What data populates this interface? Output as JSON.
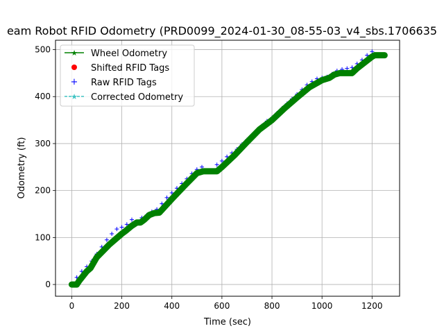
{
  "chart_data": {
    "type": "line",
    "title": "eam Robot RFID Odometry (PRD0099_2024-01-30_08-55-03_v4_sbs.1706635",
    "xlabel": "Time (sec)",
    "ylabel": "Odometry (ft)",
    "xlim": [
      -65,
      1310
    ],
    "ylim": [
      -25,
      520
    ],
    "xticks": [
      0,
      200,
      400,
      600,
      800,
      1000,
      1200
    ],
    "yticks": [
      0,
      100,
      200,
      300,
      400,
      500
    ],
    "grid": true,
    "legend_position": "top-left",
    "series": [
      {
        "name": "Wheel Odometry",
        "color": "#008000",
        "style": "line-star",
        "x": [
          0,
          20,
          30,
          60,
          75,
          100,
          150,
          200,
          215,
          240,
          260,
          275,
          290,
          310,
          330,
          350,
          400,
          450,
          500,
          525,
          560,
          580,
          600,
          650,
          700,
          750,
          800,
          850,
          900,
          950,
          1000,
          1030,
          1050,
          1070,
          1080,
          1120,
          1140,
          1200,
          1210,
          1250
        ],
        "y": [
          0,
          0,
          8,
          28,
          35,
          58,
          85,
          108,
          114,
          125,
          132,
          132,
          138,
          148,
          152,
          153,
          182,
          210,
          237,
          241,
          241,
          241,
          250,
          275,
          303,
          330,
          350,
          375,
          398,
          420,
          435,
          440,
          447,
          450,
          450,
          450,
          460,
          485,
          488,
          488
        ]
      },
      {
        "name": "Shifted RFID Tags",
        "color": "#ff0000",
        "style": "dot",
        "x": [],
        "y": []
      },
      {
        "name": "Raw RFID Tags",
        "color": "#0000ff",
        "style": "plus",
        "x": [
          20,
          40,
          60,
          80,
          100,
          120,
          140,
          160,
          180,
          200,
          220,
          240,
          280,
          300,
          320,
          340,
          360,
          380,
          400,
          420,
          440,
          460,
          480,
          500,
          520,
          580,
          600,
          620,
          640,
          660,
          680,
          700,
          720,
          740,
          760,
          780,
          800,
          820,
          840,
          860,
          880,
          900,
          920,
          940,
          960,
          980,
          1000,
          1020,
          1040,
          1060,
          1080,
          1100,
          1120,
          1140,
          1160,
          1180,
          1200
        ],
        "y": [
          15,
          28,
          38,
          50,
          65,
          80,
          95,
          108,
          118,
          122,
          128,
          138,
          142,
          148,
          155,
          160,
          172,
          185,
          195,
          205,
          215,
          225,
          236,
          245,
          250,
          255,
          263,
          272,
          280,
          288,
          298,
          308,
          318,
          328,
          338,
          348,
          355,
          365,
          375,
          385,
          395,
          405,
          415,
          425,
          432,
          438,
          440,
          442,
          448,
          455,
          458,
          460,
          462,
          470,
          478,
          488,
          496
        ]
      },
      {
        "name": "Corrected Odometry",
        "color": "#40c4c4",
        "style": "dashed-star",
        "x": [],
        "y": []
      }
    ]
  }
}
